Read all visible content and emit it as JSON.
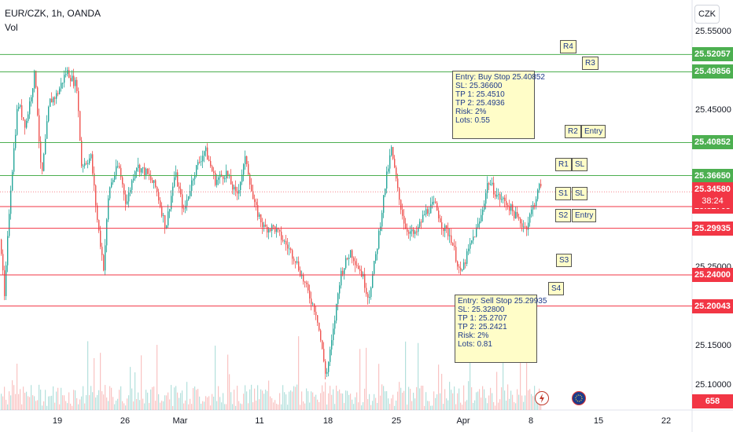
{
  "header": {
    "symbol_line": "EUR/CZK, 1h, OANDA",
    "indicator": "Vol",
    "currency": "CZK"
  },
  "colors": {
    "up": "#26a69a",
    "down": "#ef5350",
    "resistance": "#4caf50",
    "support": "#f23645",
    "label_bg": "#fffdc8"
  },
  "chart_data": {
    "type": "candlestick",
    "y_axis": {
      "ticks": [
        "25.55000",
        "25.50000",
        "25.45000",
        "25.40000",
        "25.35000",
        "25.30000",
        "25.25000",
        "25.20000",
        "25.15000",
        "25.10000"
      ],
      "ylim": [
        25.085,
        25.56
      ]
    },
    "x_axis": {
      "ticks": [
        "19",
        "26",
        "Mar",
        "11",
        "18",
        "25",
        "Apr",
        "8",
        "15",
        "22"
      ]
    },
    "levels": [
      {
        "name": "R4",
        "value": "25.52057",
        "kind": "resistance"
      },
      {
        "name": "R3",
        "value": "25.49856",
        "kind": "resistance"
      },
      {
        "name": "R2",
        "value": "25.40852",
        "kind": "resistance"
      },
      {
        "name": "R1",
        "value": "25.36650",
        "kind": "resistance"
      },
      {
        "name": "S1",
        "value": "25.32705",
        "kind": "support"
      },
      {
        "name": "S2",
        "value": "25.29935",
        "kind": "support"
      },
      {
        "name": "S3",
        "value": "25.24000",
        "kind": "support"
      },
      {
        "name": "S4",
        "value": "25.20043",
        "kind": "support"
      }
    ],
    "current_price": "25.34580",
    "countdown": "38:24",
    "volume_last": "658",
    "markers": [
      "R4",
      "R3",
      "R2",
      "Entry",
      "R1",
      "SL",
      "S1",
      "SL",
      "S2",
      "Entry",
      "S3",
      "S4"
    ],
    "buy_plan": [
      "Entry: Buy Stop 25.40852",
      "SL: 25.36600",
      "TP 1: 25.4510",
      "TP 2: 25.4936",
      "Risk: 2%",
      "Lots: 0.55"
    ],
    "sell_plan": [
      "Entry: Sell Stop 25.29935",
      "SL: 25.32800",
      "TP 1: 25.2707",
      "TP 2: 25.2421",
      "Risk: 2%",
      "Lots: 0.81"
    ],
    "price_path": [
      [
        0,
        25.285
      ],
      [
        5,
        25.21
      ],
      [
        12,
        25.34
      ],
      [
        22,
        25.46
      ],
      [
        32,
        25.43
      ],
      [
        44,
        25.5
      ],
      [
        52,
        25.36
      ],
      [
        62,
        25.46
      ],
      [
        72,
        25.47
      ],
      [
        84,
        25.5
      ],
      [
        97,
        25.48
      ],
      [
        103,
        25.38
      ],
      [
        115,
        25.39
      ],
      [
        123,
        25.31
      ],
      [
        131,
        25.25
      ],
      [
        138,
        25.35
      ],
      [
        150,
        25.38
      ],
      [
        160,
        25.33
      ],
      [
        172,
        25.38
      ],
      [
        185,
        25.37
      ],
      [
        198,
        25.35
      ],
      [
        210,
        25.3
      ],
      [
        222,
        25.37
      ],
      [
        233,
        25.32
      ],
      [
        246,
        25.37
      ],
      [
        260,
        25.4
      ],
      [
        273,
        25.36
      ],
      [
        287,
        25.37
      ],
      [
        300,
        25.34
      ],
      [
        312,
        25.39
      ],
      [
        322,
        25.33
      ],
      [
        335,
        25.3
      ],
      [
        348,
        25.3
      ],
      [
        362,
        25.28
      ],
      [
        375,
        25.26
      ],
      [
        390,
        25.22
      ],
      [
        402,
        25.19
      ],
      [
        414,
        25.11
      ],
      [
        422,
        25.16
      ],
      [
        432,
        25.24
      ],
      [
        445,
        25.27
      ],
      [
        460,
        25.24
      ],
      [
        468,
        25.21
      ],
      [
        478,
        25.27
      ],
      [
        490,
        25.36
      ],
      [
        497,
        25.4
      ],
      [
        506,
        25.34
      ],
      [
        515,
        25.3
      ],
      [
        527,
        25.29
      ],
      [
        540,
        25.32
      ],
      [
        552,
        25.33
      ],
      [
        563,
        25.3
      ],
      [
        572,
        25.29
      ],
      [
        585,
        25.24
      ],
      [
        598,
        25.28
      ],
      [
        610,
        25.31
      ],
      [
        620,
        25.36
      ],
      [
        632,
        25.34
      ],
      [
        645,
        25.33
      ],
      [
        658,
        25.31
      ],
      [
        668,
        25.3
      ],
      [
        678,
        25.33
      ],
      [
        688,
        25.36
      ]
    ]
  }
}
